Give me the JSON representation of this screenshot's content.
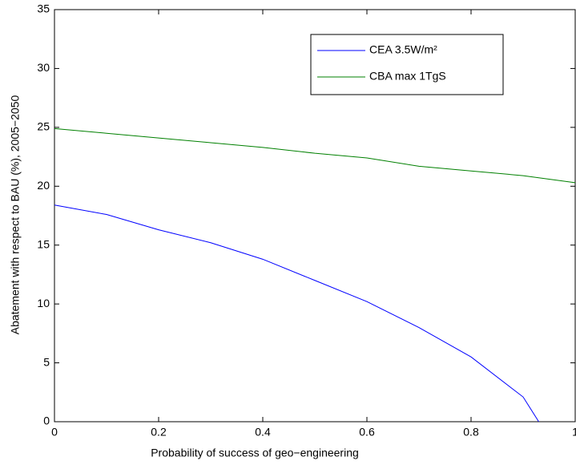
{
  "chart_data": {
    "type": "line",
    "xlabel": "Probability of success of geo−engineering",
    "ylabel": "Abatement with respect to BAU (%), 2005−2050",
    "xlim": [
      0,
      1
    ],
    "ylim": [
      0,
      35
    ],
    "xticks": [
      0,
      0.2,
      0.4,
      0.6,
      0.8,
      1
    ],
    "yticks": [
      0,
      5,
      10,
      15,
      20,
      25,
      30,
      35
    ],
    "legend": "upper right",
    "series": [
      {
        "name": "CEA 3.5W/m²",
        "color": "#0000ff",
        "x": [
          0,
          0.1,
          0.2,
          0.3,
          0.4,
          0.5,
          0.6,
          0.7,
          0.8,
          0.9,
          0.93
        ],
        "values": [
          18.4,
          17.6,
          16.3,
          15.2,
          13.8,
          12.0,
          10.2,
          8.0,
          5.5,
          2.1,
          0
        ]
      },
      {
        "name": "CBA max 1TgS",
        "color": "#008000",
        "x": [
          0,
          0.1,
          0.2,
          0.3,
          0.4,
          0.5,
          0.6,
          0.7,
          0.8,
          0.9,
          1
        ],
        "values": [
          24.9,
          24.5,
          24.1,
          23.7,
          23.3,
          22.8,
          22.4,
          21.7,
          21.3,
          20.9,
          20.3
        ]
      }
    ]
  }
}
